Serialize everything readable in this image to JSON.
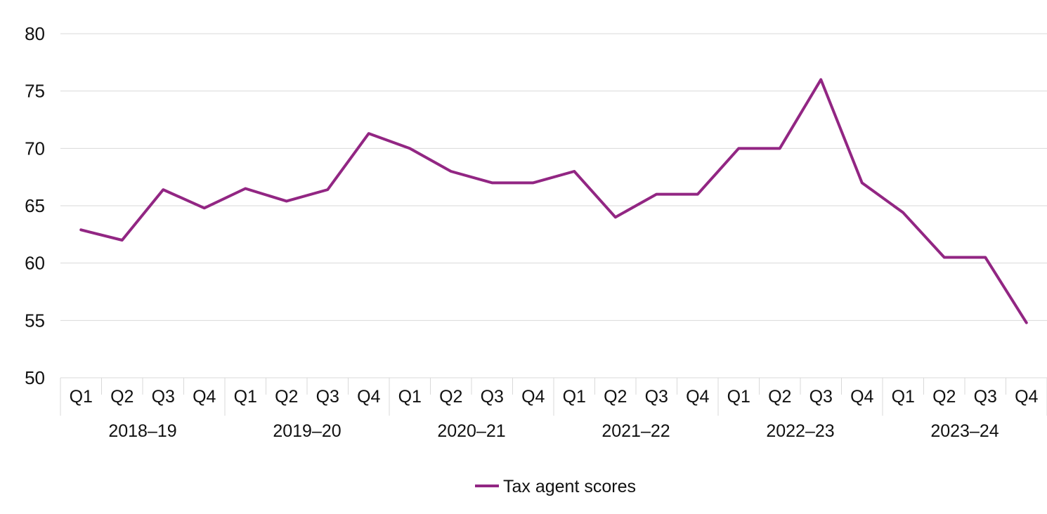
{
  "chart_data": {
    "type": "line",
    "title": "",
    "xlabel": "",
    "ylabel": "",
    "ylim": [
      50,
      80
    ],
    "yticks": [
      50,
      55,
      60,
      65,
      70,
      75,
      80
    ],
    "grid": "horizontal",
    "legend_position": "bottom-center",
    "categories": [
      {
        "quarter": "Q1",
        "year": "2018–19"
      },
      {
        "quarter": "Q2",
        "year": "2018–19"
      },
      {
        "quarter": "Q3",
        "year": "2018–19"
      },
      {
        "quarter": "Q4",
        "year": "2018–19"
      },
      {
        "quarter": "Q1",
        "year": "2019–20"
      },
      {
        "quarter": "Q2",
        "year": "2019–20"
      },
      {
        "quarter": "Q3",
        "year": "2019–20"
      },
      {
        "quarter": "Q4",
        "year": "2019–20"
      },
      {
        "quarter": "Q1",
        "year": "2020–21"
      },
      {
        "quarter": "Q2",
        "year": "2020–21"
      },
      {
        "quarter": "Q3",
        "year": "2020–21"
      },
      {
        "quarter": "Q4",
        "year": "2020–21"
      },
      {
        "quarter": "Q1",
        "year": "2021–22"
      },
      {
        "quarter": "Q2",
        "year": "2021–22"
      },
      {
        "quarter": "Q3",
        "year": "2021–22"
      },
      {
        "quarter": "Q4",
        "year": "2021–22"
      },
      {
        "quarter": "Q1",
        "year": "2022–23"
      },
      {
        "quarter": "Q2",
        "year": "2022–23"
      },
      {
        "quarter": "Q3",
        "year": "2022–23"
      },
      {
        "quarter": "Q4",
        "year": "2022–23"
      },
      {
        "quarter": "Q1",
        "year": "2023–24"
      },
      {
        "quarter": "Q2",
        "year": "2023–24"
      },
      {
        "quarter": "Q3",
        "year": "2023–24"
      },
      {
        "quarter": "Q4",
        "year": "2023–24"
      }
    ],
    "years": [
      "2018–19",
      "2019–20",
      "2020–21",
      "2021–22",
      "2022–23",
      "2023–24"
    ],
    "series": [
      {
        "name": "Tax agent scores",
        "color": "#922683",
        "values": [
          62.9,
          62.0,
          66.4,
          64.8,
          66.5,
          65.4,
          66.4,
          71.3,
          70.0,
          68.0,
          67.0,
          67.0,
          68.0,
          64.0,
          66.0,
          66.0,
          70.0,
          70.0,
          76.0,
          67.0,
          64.4,
          60.5,
          60.5,
          54.8
        ]
      }
    ]
  }
}
